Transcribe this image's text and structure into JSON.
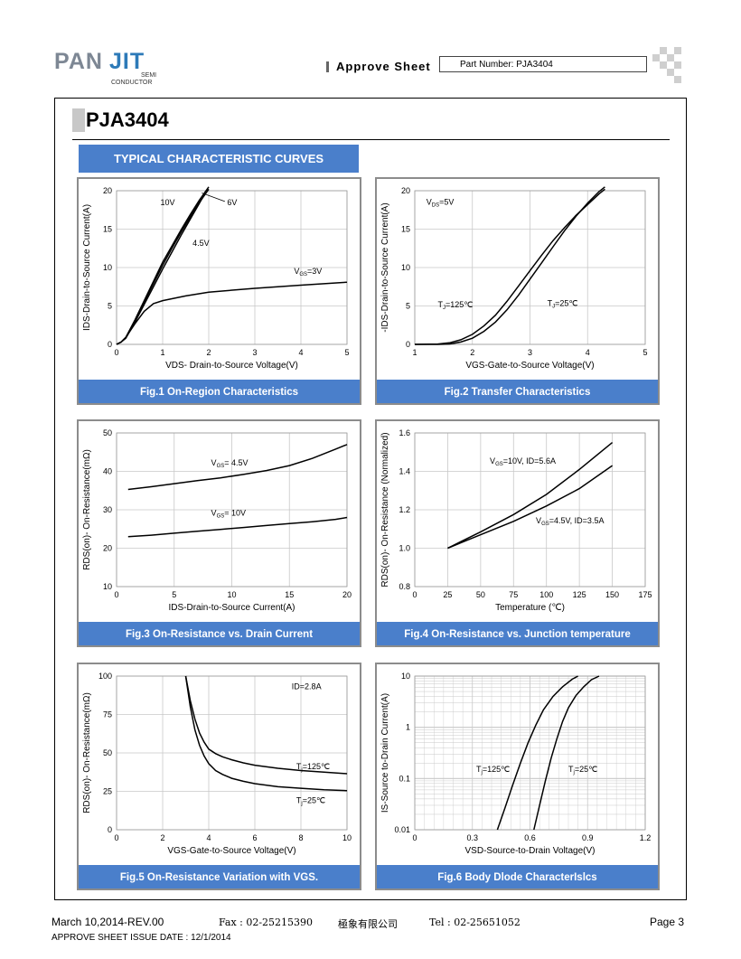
{
  "header": {
    "logo": {
      "pan": "PAN",
      "jit": "JIT",
      "semi": "SEMI",
      "conductor": "CONDUCTOR"
    },
    "approve_sheet": "Approve Sheet",
    "part_number": "Part Number: PJA3404"
  },
  "title": "PJA3404",
  "section_title": "TYPICAL CHARACTERISTIC CURVES",
  "colors": {
    "accent": "#4a7fcb",
    "frame": "#8c8c8c",
    "grid": "#c8c8c8"
  },
  "figures": [
    {
      "id": "fig1",
      "caption": "Fig.1 On-Region Characteristics",
      "chart_data": {
        "type": "line",
        "xlabel": "VDS- Drain-to-Source Voltage(V)",
        "ylabel": "IDS-Drain-to-Source Current(A)",
        "xlim": [
          0,
          5
        ],
        "ylim": [
          0,
          20
        ],
        "x_ticks": [
          "0",
          "1",
          "2",
          "3",
          "4",
          "5"
        ],
        "y_ticks": [
          "0",
          "5",
          "10",
          "15",
          "20"
        ],
        "grid": true,
        "log_y": false,
        "series": [
          {
            "name": "10V",
            "x": [
              0,
              0.1,
              0.2,
              0.4,
              0.6,
              0.8,
              1.0,
              1.2,
              1.4,
              1.6,
              1.8,
              2.0
            ],
            "y": [
              0,
              0.3,
              0.9,
              3.2,
              5.7,
              8.2,
              10.7,
              12.8,
              14.9,
              16.9,
              18.8,
              20.5
            ]
          },
          {
            "name": "6V",
            "x": [
              0,
              0.1,
              0.2,
              0.4,
              0.6,
              0.8,
              1.0,
              1.2,
              1.4,
              1.6,
              1.8,
              2.0
            ],
            "y": [
              0,
              0.3,
              0.9,
              3.1,
              5.5,
              7.9,
              10.3,
              12.5,
              14.6,
              16.6,
              18.5,
              20.2
            ]
          },
          {
            "name": "4.5V",
            "x": [
              0,
              0.1,
              0.2,
              0.4,
              0.6,
              0.8,
              1.0,
              1.2,
              1.4,
              1.6,
              1.8,
              1.9
            ],
            "y": [
              0,
              0.3,
              0.8,
              2.9,
              5.2,
              7.5,
              9.8,
              12.0,
              14.2,
              16.3,
              18.4,
              19.5
            ]
          },
          {
            "name": "3V",
            "x": [
              0,
              0.1,
              0.2,
              0.4,
              0.6,
              0.8,
              1.0,
              1.5,
              2.0,
              3.0,
              4.0,
              5.0
            ],
            "y": [
              0,
              0.3,
              0.9,
              2.7,
              4.3,
              5.3,
              5.7,
              6.3,
              6.8,
              7.3,
              7.7,
              8.1
            ]
          }
        ],
        "annotations": [
          {
            "text": "10V",
            "x": 0.95,
            "y": 18.1
          },
          {
            "text": "6V",
            "x": 2.4,
            "y": 18.1
          },
          {
            "text": "4.5V",
            "x": 1.65,
            "y": 12.8
          },
          {
            "text": "V",
            "sub": "GS",
            "rest": "=3V",
            "x": 3.85,
            "y": 9.2
          }
        ]
      }
    },
    {
      "id": "fig2",
      "caption": "Fig.2 Transfer Characteristics",
      "chart_data": {
        "type": "line",
        "xlabel": "VGS-Gate-to-Source Voltage(V)",
        "ylabel": "-IDS-Drain-to-Source Current(A)",
        "xlim": [
          1,
          5
        ],
        "ylim": [
          0,
          20
        ],
        "x_ticks": [
          "1",
          "2",
          "3",
          "4",
          "5"
        ],
        "y_ticks": [
          "0",
          "5",
          "10",
          "15",
          "20"
        ],
        "grid": true,
        "log_y": false,
        "series": [
          {
            "name": "TJ=125℃",
            "x": [
              1.0,
              1.4,
              1.6,
              1.8,
              2.0,
              2.2,
              2.4,
              2.6,
              2.8,
              3.0,
              3.2,
              3.4,
              3.6,
              3.8,
              4.0,
              4.2,
              4.3
            ],
            "y": [
              0.0,
              0.05,
              0.2,
              0.6,
              1.3,
              2.4,
              3.8,
              5.6,
              7.6,
              9.6,
              11.6,
              13.5,
              15.2,
              16.8,
              18.2,
              19.6,
              20.2
            ]
          },
          {
            "name": "TJ=25℃",
            "x": [
              1.0,
              1.4,
              1.6,
              1.8,
              2.0,
              2.2,
              2.4,
              2.6,
              2.8,
              3.0,
              3.2,
              3.4,
              3.6,
              3.8,
              4.0,
              4.2,
              4.3
            ],
            "y": [
              0.0,
              0.0,
              0.05,
              0.3,
              0.8,
              1.7,
              2.9,
              4.5,
              6.4,
              8.5,
              10.6,
              12.7,
              14.8,
              16.7,
              18.4,
              19.9,
              20.5
            ]
          }
        ],
        "annotations": [
          {
            "text": "V",
            "sub": "DS",
            "rest": "=5V",
            "x": 1.2,
            "y": 18.2
          },
          {
            "text": "T",
            "sub": "J",
            "rest": "=125℃",
            "x": 1.4,
            "y": 4.8
          },
          {
            "text": "T",
            "sub": "J",
            "rest": "=25℃",
            "x": 3.3,
            "y": 5.0
          }
        ]
      }
    },
    {
      "id": "fig3",
      "caption": "Fig.3 On-Resistance vs. Drain Current",
      "chart_data": {
        "type": "line",
        "xlabel": "IDS-Drain-to-Source  Current(A)",
        "ylabel": "RDS(on)- On-Resistance(mΩ)",
        "xlim": [
          0,
          20
        ],
        "ylim": [
          10,
          50
        ],
        "x_ticks": [
          "0",
          "5",
          "10",
          "15",
          "20"
        ],
        "y_ticks": [
          "10",
          "20",
          "30",
          "40",
          "50"
        ],
        "grid": true,
        "log_y": false,
        "series": [
          {
            "name": "VGS= 4.5V",
            "x": [
              1,
              3,
              5,
              7,
              9,
              11,
              13,
              15,
              17,
              19,
              20
            ],
            "y": [
              35.3,
              36.0,
              36.8,
              37.6,
              38.3,
              39.2,
              40.2,
              41.5,
              43.4,
              45.8,
              47.0
            ]
          },
          {
            "name": "VGS= 10V",
            "x": [
              1,
              3,
              5,
              7,
              9,
              11,
              13,
              15,
              17,
              19,
              20
            ],
            "y": [
              23.0,
              23.4,
              23.9,
              24.4,
              24.9,
              25.4,
              25.9,
              26.4,
              26.9,
              27.5,
              28.0
            ]
          }
        ],
        "annotations": [
          {
            "text": "V",
            "sub": "GS",
            "rest": "= 4.5V",
            "x": 8.2,
            "y": 41.5
          },
          {
            "text": "V",
            "sub": "GS",
            "rest": "= 10V",
            "x": 8.2,
            "y": 28.5
          }
        ]
      }
    },
    {
      "id": "fig4",
      "caption": "Fig.4 On-Resistance vs. Junction temperature",
      "chart_data": {
        "type": "line",
        "xlabel": "Temperature (℃)",
        "ylabel": "RDS(on)- On-Resistance (Normalized)",
        "xlim": [
          0,
          175
        ],
        "ylim": [
          0.8,
          1.6
        ],
        "x_ticks": [
          "0",
          "25",
          "50",
          "75",
          "100",
          "125",
          "150",
          "175"
        ],
        "y_ticks": [
          "0.8",
          "1.0",
          "1.2",
          "1.4",
          "1.6"
        ],
        "grid": true,
        "log_y": false,
        "series": [
          {
            "name": "VGS=10V, ID=5.6A",
            "x": [
              25,
              50,
              75,
              100,
              125,
              150
            ],
            "y": [
              1.0,
              1.085,
              1.175,
              1.28,
              1.41,
              1.55
            ]
          },
          {
            "name": "VGS=4.5V, ID=3.5A",
            "x": [
              25,
              50,
              75,
              100,
              125,
              150
            ],
            "y": [
              1.0,
              1.07,
              1.14,
              1.22,
              1.31,
              1.43
            ]
          }
        ],
        "annotations": [
          {
            "text": "V",
            "sub": "GS",
            "rest": "=10V, ID=5.6A",
            "x": 57,
            "y": 1.44
          },
          {
            "text": "V",
            "sub": "GS",
            "rest": "=4.5V, ID=3.5A",
            "x": 92,
            "y": 1.13
          }
        ]
      }
    },
    {
      "id": "fig5",
      "caption": "Fig.5 On-Resistance Variation with VGS.",
      "chart_data": {
        "type": "line",
        "xlabel": "VGS-Gate-to-Source  Voltage(V)",
        "ylabel": "RDS(on)- On-Resistance(mΩ)",
        "xlim": [
          0,
          10
        ],
        "ylim": [
          0,
          100
        ],
        "x_ticks": [
          "0",
          "2",
          "4",
          "6",
          "8",
          "10"
        ],
        "y_ticks": [
          "0",
          "25",
          "50",
          "75",
          "100"
        ],
        "grid": true,
        "log_y": false,
        "series": [
          {
            "name": "TJ=125℃",
            "x": [
              3.0,
              3.2,
              3.4,
              3.6,
              3.8,
              4.0,
              4.3,
              4.6,
              5.0,
              5.5,
              6.0,
              7.0,
              8.0,
              9.0,
              10.0
            ],
            "y": [
              100,
              84,
              72,
              63,
              57,
              52.5,
              49.5,
              47.5,
              45.5,
              43.5,
              42,
              40,
              38.5,
              37.5,
              36.5
            ]
          },
          {
            "name": "TJ=25℃",
            "x": [
              3.0,
              3.2,
              3.4,
              3.6,
              3.8,
              4.0,
              4.3,
              4.6,
              5.0,
              5.5,
              6.0,
              7.0,
              8.0,
              9.0,
              10.0
            ],
            "y": [
              100,
              80,
              65,
              55,
              48,
              43,
              38.5,
              36,
              33.5,
              31.5,
              30,
              28,
              27,
              26,
              25.5
            ]
          }
        ],
        "annotations": [
          {
            "text": "ID=2.8A",
            "x": 7.6,
            "y": 91.5
          },
          {
            "text": "T",
            "sub": "j",
            "rest": "=125℃",
            "x": 7.8,
            "y": 39.5
          },
          {
            "text": "T",
            "sub": "j",
            "rest": "=25℃",
            "x": 7.8,
            "y": 17.5
          }
        ]
      }
    },
    {
      "id": "fig6",
      "caption": "Fig.6 Body Dlode CharacterIslcs",
      "chart_data": {
        "type": "line",
        "xlabel": "VSD-Source-to-Drain Voltage(V)",
        "ylabel": "IS-Source  to-Drain Current(A)",
        "xlim": [
          0,
          1.2
        ],
        "ylim": [
          0.01,
          10
        ],
        "x_ticks": [
          "0",
          "0.3",
          "0.6",
          "0.9",
          "1.2"
        ],
        "y_ticks": [
          "0.01",
          "0.1",
          "1",
          "10"
        ],
        "grid": true,
        "log_y": true,
        "series": [
          {
            "name": "Tj=125℃",
            "x": [
              0.43,
              0.47,
              0.51,
              0.55,
              0.59,
              0.63,
              0.67,
              0.72,
              0.77,
              0.82,
              0.85
            ],
            "y": [
              0.01,
              0.027,
              0.075,
              0.2,
              0.5,
              1.1,
              2.2,
              4.0,
              6.2,
              8.7,
              10
            ]
          },
          {
            "name": "Tj=25℃",
            "x": [
              0.62,
              0.65,
              0.68,
              0.71,
              0.74,
              0.77,
              0.8,
              0.84,
              0.88,
              0.92,
              0.96
            ],
            "y": [
              0.01,
              0.03,
              0.09,
              0.25,
              0.6,
              1.3,
              2.4,
              4.2,
              6.2,
              8.5,
              10
            ]
          }
        ],
        "annotations": [
          {
            "text": "T",
            "sub": "j",
            "rest": "=125℃",
            "x": 0.32,
            "y": 0.135
          },
          {
            "text": "T",
            "sub": "j",
            "rest": "=25℃",
            "x": 0.8,
            "y": 0.135
          }
        ]
      }
    }
  ],
  "footer": {
    "date_rev": "March 10,2014-REV.00",
    "fax": "Fax : 02-25215390",
    "company": "極象有限公司",
    "tel": "Tel : 02-25651052",
    "page": "Page 3",
    "issue_date": "APPROVE SHEET ISSUE DATE : 12/1/2014"
  }
}
